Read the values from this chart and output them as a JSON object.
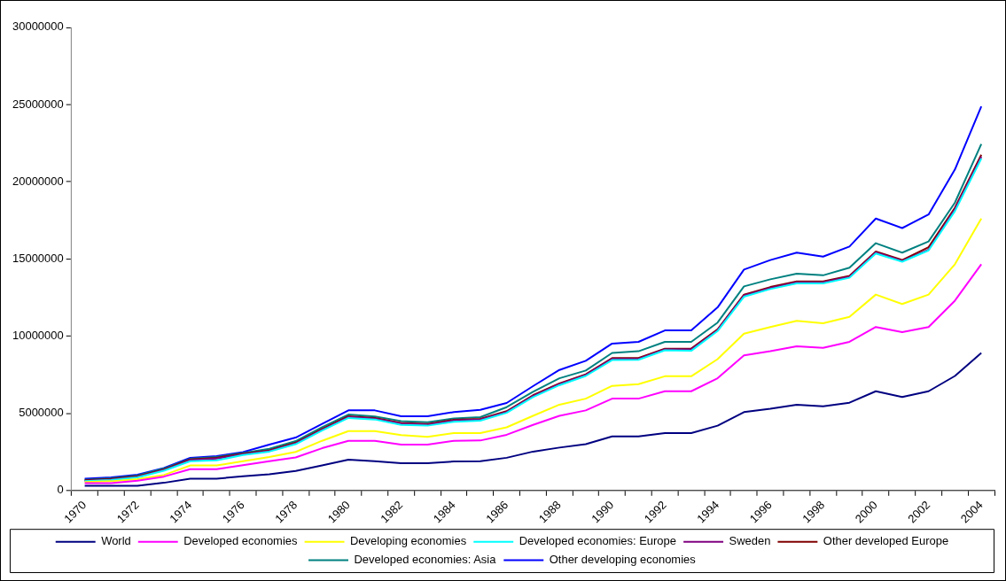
{
  "chart_data": {
    "type": "line",
    "categories": [
      "1970",
      null,
      "1972",
      null,
      "1974",
      null,
      "1976",
      null,
      "1978",
      null,
      "1980",
      null,
      "1982",
      null,
      "1984",
      null,
      "1986",
      null,
      "1988",
      null,
      "1990",
      null,
      "1992",
      null,
      "1994",
      null,
      "1996",
      null,
      "1998",
      null,
      "2000",
      null,
      "2002",
      null,
      "2004"
    ],
    "ylim": [
      0,
      30000000
    ],
    "yticks": [
      0,
      5000000,
      10000000,
      15000000,
      20000000,
      25000000,
      30000000
    ],
    "grid": false,
    "legend": "bottom",
    "marker": "none",
    "line_style": "solid",
    "series": [
      {
        "name": "World",
        "color": "#000080",
        "values": [
          300000,
          300000,
          300000,
          500000,
          770000,
          770000,
          920000,
          1050000,
          1270000,
          1620000,
          2000000,
          1900000,
          1770000,
          1770000,
          1880000,
          1900000,
          2120000,
          2520000,
          2780000,
          3000000,
          3500000,
          3500000,
          3720000,
          3720000,
          4200000,
          5080000,
          5300000,
          5560000,
          5450000,
          5690000,
          6430000,
          6060000,
          6430000,
          7420000,
          8910000
        ]
      },
      {
        "name": "Developed economies",
        "color": "#ff00ff",
        "values": [
          480000,
          480000,
          630000,
          900000,
          1380000,
          1380000,
          1640000,
          1900000,
          2140000,
          2740000,
          3220000,
          3220000,
          2970000,
          2970000,
          3220000,
          3240000,
          3610000,
          4250000,
          4840000,
          5190000,
          5950000,
          5950000,
          6430000,
          6430000,
          7270000,
          8750000,
          9020000,
          9340000,
          9240000,
          9630000,
          10590000,
          10260000,
          10590000,
          12300000,
          14660000
        ]
      },
      {
        "name": "Developing economies",
        "color": "#ffff00",
        "values": [
          550000,
          600000,
          740000,
          1000000,
          1620000,
          1620000,
          1900000,
          2170000,
          2500000,
          3220000,
          3850000,
          3850000,
          3590000,
          3480000,
          3720000,
          3720000,
          4090000,
          4840000,
          5560000,
          5950000,
          6780000,
          6890000,
          7400000,
          7400000,
          8510000,
          10160000,
          10590000,
          10990000,
          10830000,
          11250000,
          12690000,
          12080000,
          12690000,
          14660000,
          17620000
        ]
      },
      {
        "name": "Developed economies: Europe",
        "color": "#00ffff",
        "values": [
          600000,
          680000,
          850000,
          1280000,
          1900000,
          1950000,
          2300000,
          2520000,
          3000000,
          3880000,
          4700000,
          4600000,
          4250000,
          4200000,
          4450000,
          4520000,
          5030000,
          6050000,
          6820000,
          7420000,
          8450000,
          8470000,
          9080000,
          9050000,
          10330000,
          12550000,
          13050000,
          13420000,
          13420000,
          13780000,
          15350000,
          14820000,
          15550000,
          18100000,
          21500000
        ]
      },
      {
        "name": "Sweden",
        "color": "#800080",
        "values": [
          620000,
          710000,
          880000,
          1320000,
          1970000,
          2070000,
          2340000,
          2560000,
          3050000,
          3930000,
          4760000,
          4650000,
          4330000,
          4260000,
          4530000,
          4590000,
          5090000,
          6120000,
          6890000,
          7480000,
          8530000,
          8530000,
          9140000,
          9140000,
          10390000,
          12630000,
          13120000,
          13490000,
          13490000,
          13840000,
          15420000,
          14870000,
          15600000,
          18220000,
          21620000
        ]
      },
      {
        "name": "Other developed Europe",
        "color": "#800000",
        "values": [
          660000,
          750000,
          920000,
          1360000,
          2010000,
          2120000,
          2380000,
          2600000,
          3100000,
          3980000,
          4810000,
          4700000,
          4380000,
          4310000,
          4580000,
          4640000,
          5140000,
          6170000,
          6940000,
          7530000,
          8580000,
          8580000,
          9190000,
          9190000,
          10440000,
          12690000,
          13180000,
          13550000,
          13550000,
          13900000,
          15480000,
          14930000,
          15760000,
          18320000,
          21750000
        ]
      },
      {
        "name": "Developed economies: Asia",
        "color": "#008080",
        "values": [
          700000,
          800000,
          970000,
          1420000,
          2050000,
          2170000,
          2430000,
          2700000,
          3200000,
          4100000,
          4920000,
          4800000,
          4500000,
          4420000,
          4670000,
          4750000,
          5400000,
          6390000,
          7270000,
          7770000,
          8910000,
          9020000,
          9630000,
          9630000,
          10880000,
          13220000,
          13680000,
          14050000,
          13940000,
          14430000,
          16020000,
          15410000,
          16130000,
          18650000,
          22440000
        ]
      },
      {
        "name": "Other developing economies",
        "color": "#0000ff",
        "values": [
          770000,
          850000,
          1030000,
          1460000,
          2120000,
          2230000,
          2490000,
          2970000,
          3430000,
          4310000,
          5190000,
          5190000,
          4810000,
          4810000,
          5080000,
          5230000,
          5670000,
          6760000,
          7810000,
          8400000,
          9520000,
          9630000,
          10370000,
          10370000,
          11860000,
          14310000,
          14930000,
          15410000,
          15150000,
          15800000,
          17620000,
          17000000,
          17880000,
          20800000,
          24880000
        ]
      }
    ]
  }
}
